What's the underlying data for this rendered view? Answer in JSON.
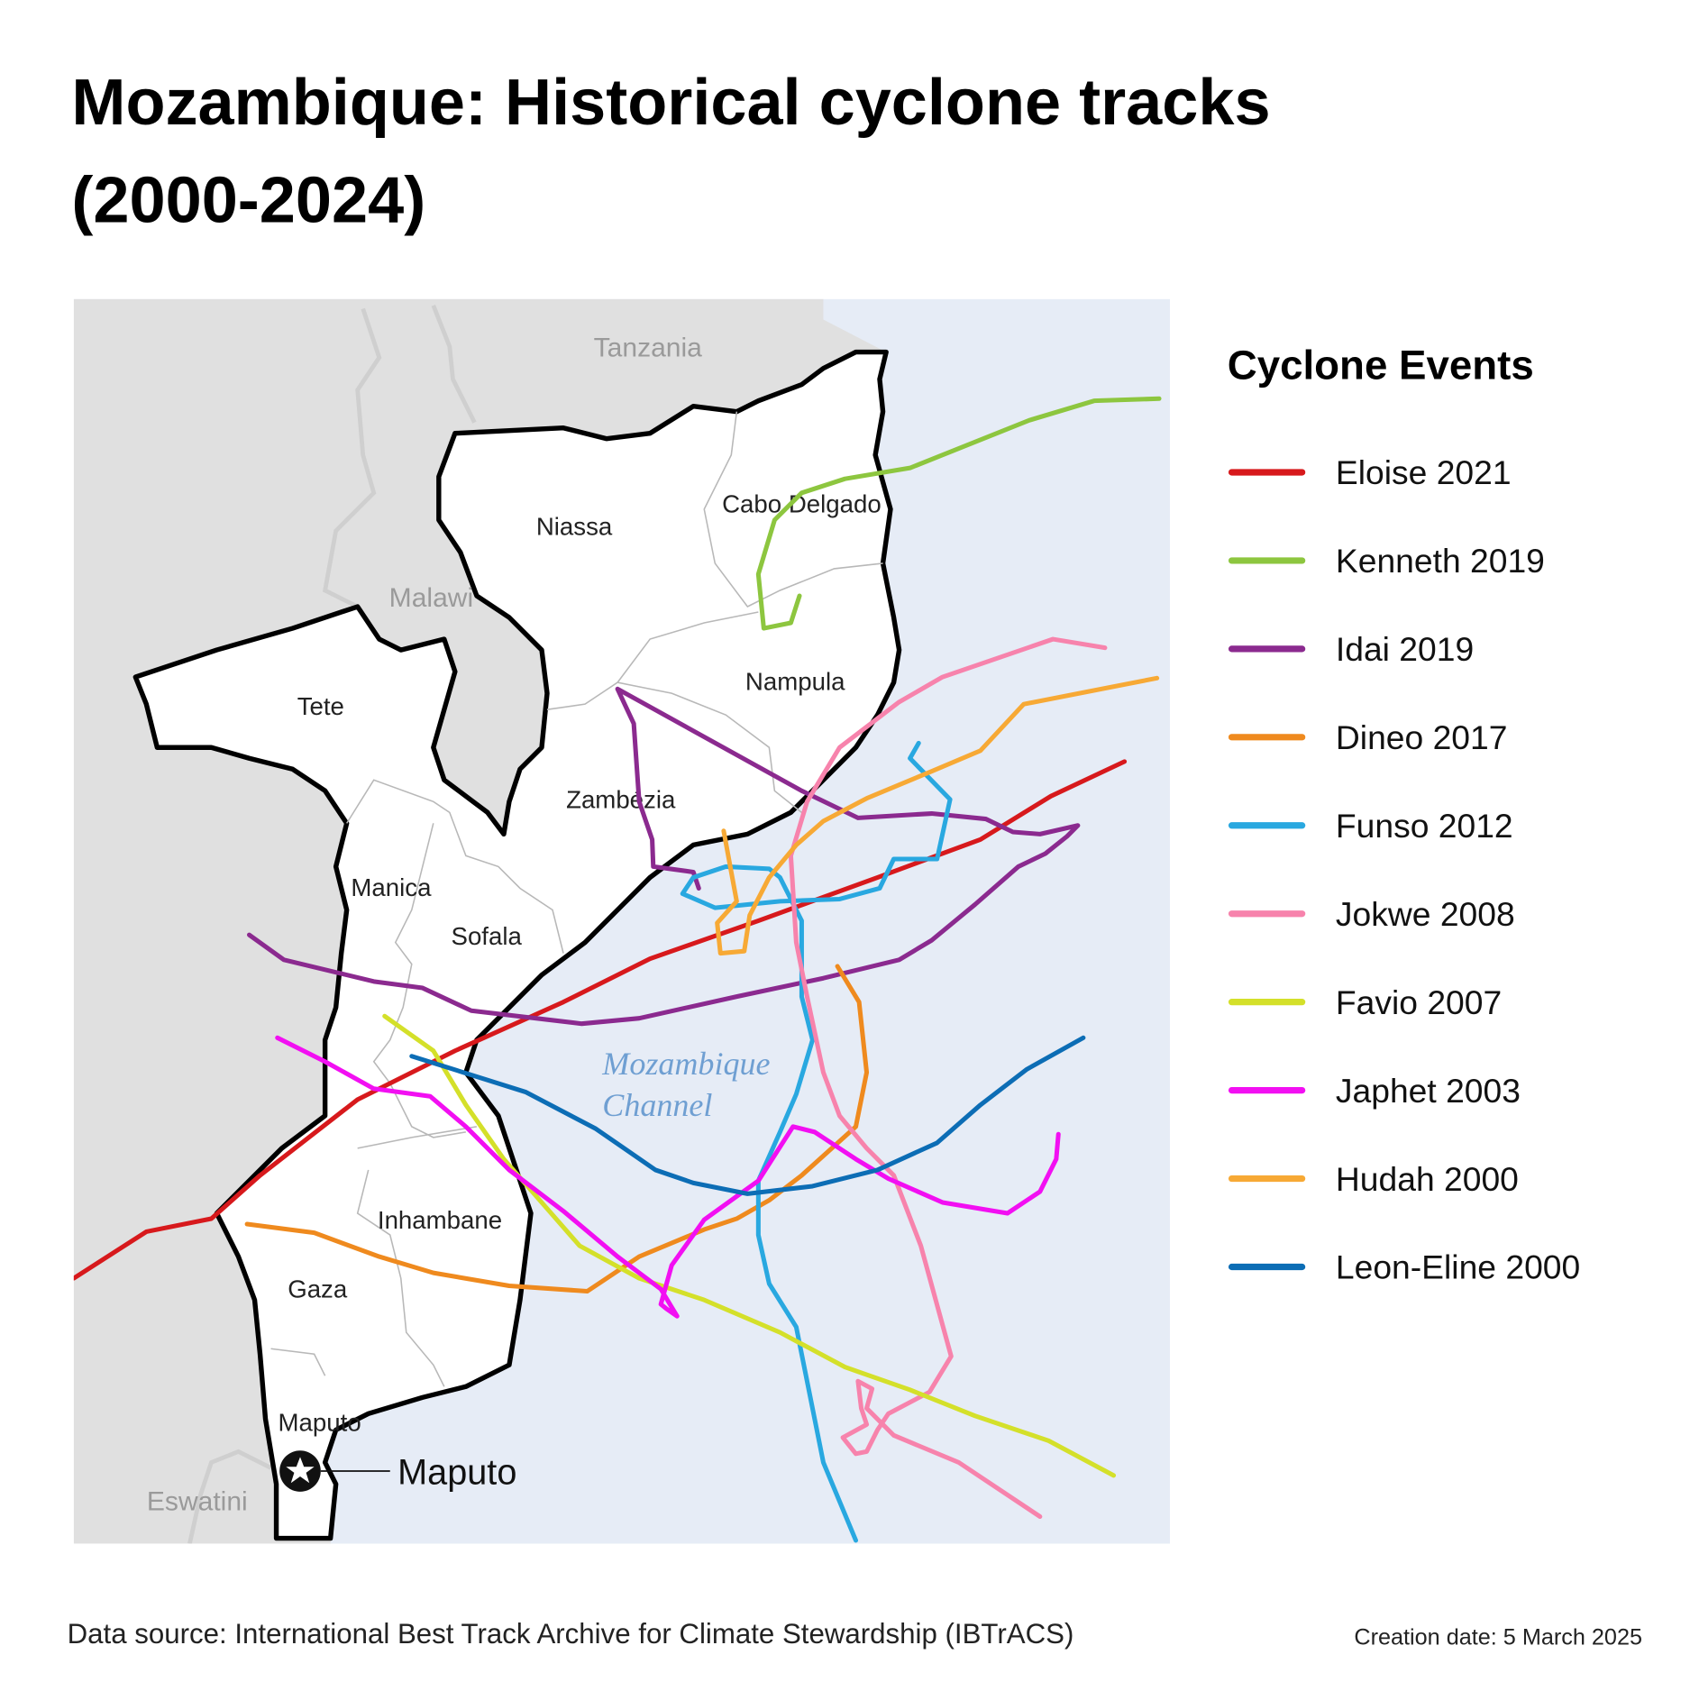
{
  "header": {
    "title_lines": [
      "Mozambique: Historical cyclone tracks",
      "(2000-2024)"
    ]
  },
  "map": {
    "countries": [
      "Tanzania",
      "Malawi",
      "Eswatini"
    ],
    "provinces": [
      "Niassa",
      "Cabo Delgado",
      "Tete",
      "Nampula",
      "Zambézia",
      "Manica",
      "Sofala",
      "Inhambane",
      "Gaza",
      "Maputo"
    ],
    "capital": "Maputo",
    "sea_label_lines": [
      "Mozambique",
      "Channel"
    ]
  },
  "legend": {
    "title": "Cyclone Events",
    "items": [
      {
        "name": "Eloise 2021",
        "color": "#d7191c"
      },
      {
        "name": "Kenneth 2019",
        "color": "#8dc63f"
      },
      {
        "name": "Idai 2019",
        "color": "#8b2a8f"
      },
      {
        "name": "Dineo 2017",
        "color": "#ef8a1e"
      },
      {
        "name": "Funso 2012",
        "color": "#29a8e0"
      },
      {
        "name": "Jokwe 2008",
        "color": "#f783ac"
      },
      {
        "name": "Favio 2007",
        "color": "#d4e02a"
      },
      {
        "name": "Japhet 2003",
        "color": "#f20ff2"
      },
      {
        "name": "Hudah 2000",
        "color": "#f7a935"
      },
      {
        "name": "Leon-Eline 2000",
        "color": "#0c6db5"
      }
    ]
  },
  "footer": {
    "source": "Data source: International Best Track Archive for Climate Stewardship (IBTrACS)",
    "creation_date": "Creation date: 5 March 2025"
  }
}
